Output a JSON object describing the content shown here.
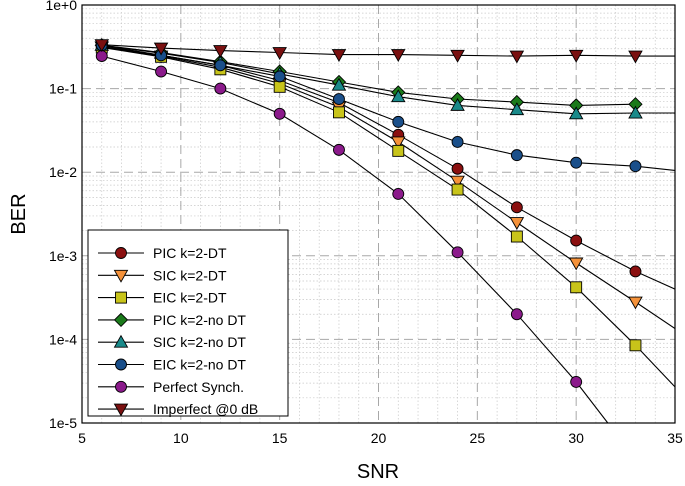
{
  "chart_data": {
    "type": "line",
    "xlabel": "SNR",
    "ylabel": "BER",
    "xlim": [
      5,
      35
    ],
    "ylim": [
      1e-05,
      1
    ],
    "y_scale": "log",
    "x_ticks": [
      "5",
      "10",
      "15",
      "20",
      "25",
      "30",
      "35"
    ],
    "x_tick_values": [
      5,
      10,
      15,
      20,
      25,
      30,
      35
    ],
    "y_ticks": [
      "1e-5",
      "1e-4",
      "1e-3",
      "1e-2",
      "1e-1",
      "1e+0"
    ],
    "y_tick_values": [
      1e-05,
      0.0001,
      0.001,
      0.01,
      0.1,
      1
    ],
    "grid": true,
    "legend_position": "bottom-left",
    "series": [
      {
        "name": "PIC k=2-DT",
        "marker": "circle",
        "color": "#8b1010",
        "x": [
          6,
          9,
          12,
          15,
          18,
          21,
          24,
          27,
          30,
          33,
          35
        ],
        "y": [
          0.32,
          0.25,
          0.19,
          0.125,
          0.068,
          0.028,
          0.011,
          0.0038,
          0.00152,
          0.00065,
          0.0004
        ]
      },
      {
        "name": "SIC k=2-DT",
        "marker": "triangle-down",
        "color": "#f5923a",
        "x": [
          6,
          9,
          12,
          15,
          18,
          21,
          24,
          27,
          30,
          33,
          35
        ],
        "y": [
          0.315,
          0.245,
          0.18,
          0.115,
          0.06,
          0.023,
          0.0078,
          0.0025,
          0.00082,
          0.00028,
          0.000135
        ]
      },
      {
        "name": "EIC k=2-DT",
        "marker": "square",
        "color": "#c8c41a",
        "x": [
          6,
          9,
          12,
          15,
          18,
          21,
          24,
          27,
          30,
          33,
          35
        ],
        "y": [
          0.31,
          0.24,
          0.17,
          0.105,
          0.052,
          0.018,
          0.0062,
          0.0017,
          0.00042,
          8.5e-05,
          2.7e-05
        ]
      },
      {
        "name": "PIC k=2-no DT",
        "marker": "diamond",
        "color": "#1a7a1a",
        "x": [
          6,
          9,
          12,
          15,
          18,
          21,
          24,
          27,
          30,
          33
        ],
        "y": [
          0.33,
          0.27,
          0.21,
          0.16,
          0.12,
          0.09,
          0.075,
          0.069,
          0.063,
          0.065
        ]
      },
      {
        "name": "SIC k=2-no DT",
        "marker": "triangle-up",
        "color": "#1a8a8a",
        "x": [
          6,
          9,
          12,
          15,
          18,
          21,
          24,
          27,
          30,
          33,
          35
        ],
        "y": [
          0.33,
          0.265,
          0.205,
          0.15,
          0.11,
          0.08,
          0.063,
          0.056,
          0.05,
          0.051,
          0.051
        ]
      },
      {
        "name": "EIC k=2-no DT",
        "marker": "circle",
        "color": "#1a4f8a",
        "x": [
          6,
          9,
          12,
          15,
          18,
          21,
          24,
          27,
          30,
          33,
          35
        ],
        "y": [
          0.33,
          0.25,
          0.19,
          0.14,
          0.075,
          0.04,
          0.023,
          0.016,
          0.013,
          0.0118,
          0.0105
        ]
      },
      {
        "name": "Perfect Synch.",
        "marker": "circle",
        "color": "#8b1a8b",
        "x": [
          6,
          9,
          12,
          15,
          18,
          21,
          24,
          27,
          30,
          31.6
        ],
        "y": [
          0.245,
          0.16,
          0.1,
          0.05,
          0.0185,
          0.0055,
          0.0011,
          0.0002,
          3.1e-05,
          1e-05
        ]
      },
      {
        "name": "Imperfect @0 dB",
        "marker": "triangle-down",
        "color": "#7a1010",
        "x": [
          6,
          9,
          12,
          15,
          18,
          21,
          24,
          27,
          30,
          33,
          35
        ],
        "y": [
          0.335,
          0.305,
          0.285,
          0.27,
          0.255,
          0.255,
          0.25,
          0.245,
          0.25,
          0.245,
          0.245
        ]
      }
    ]
  }
}
